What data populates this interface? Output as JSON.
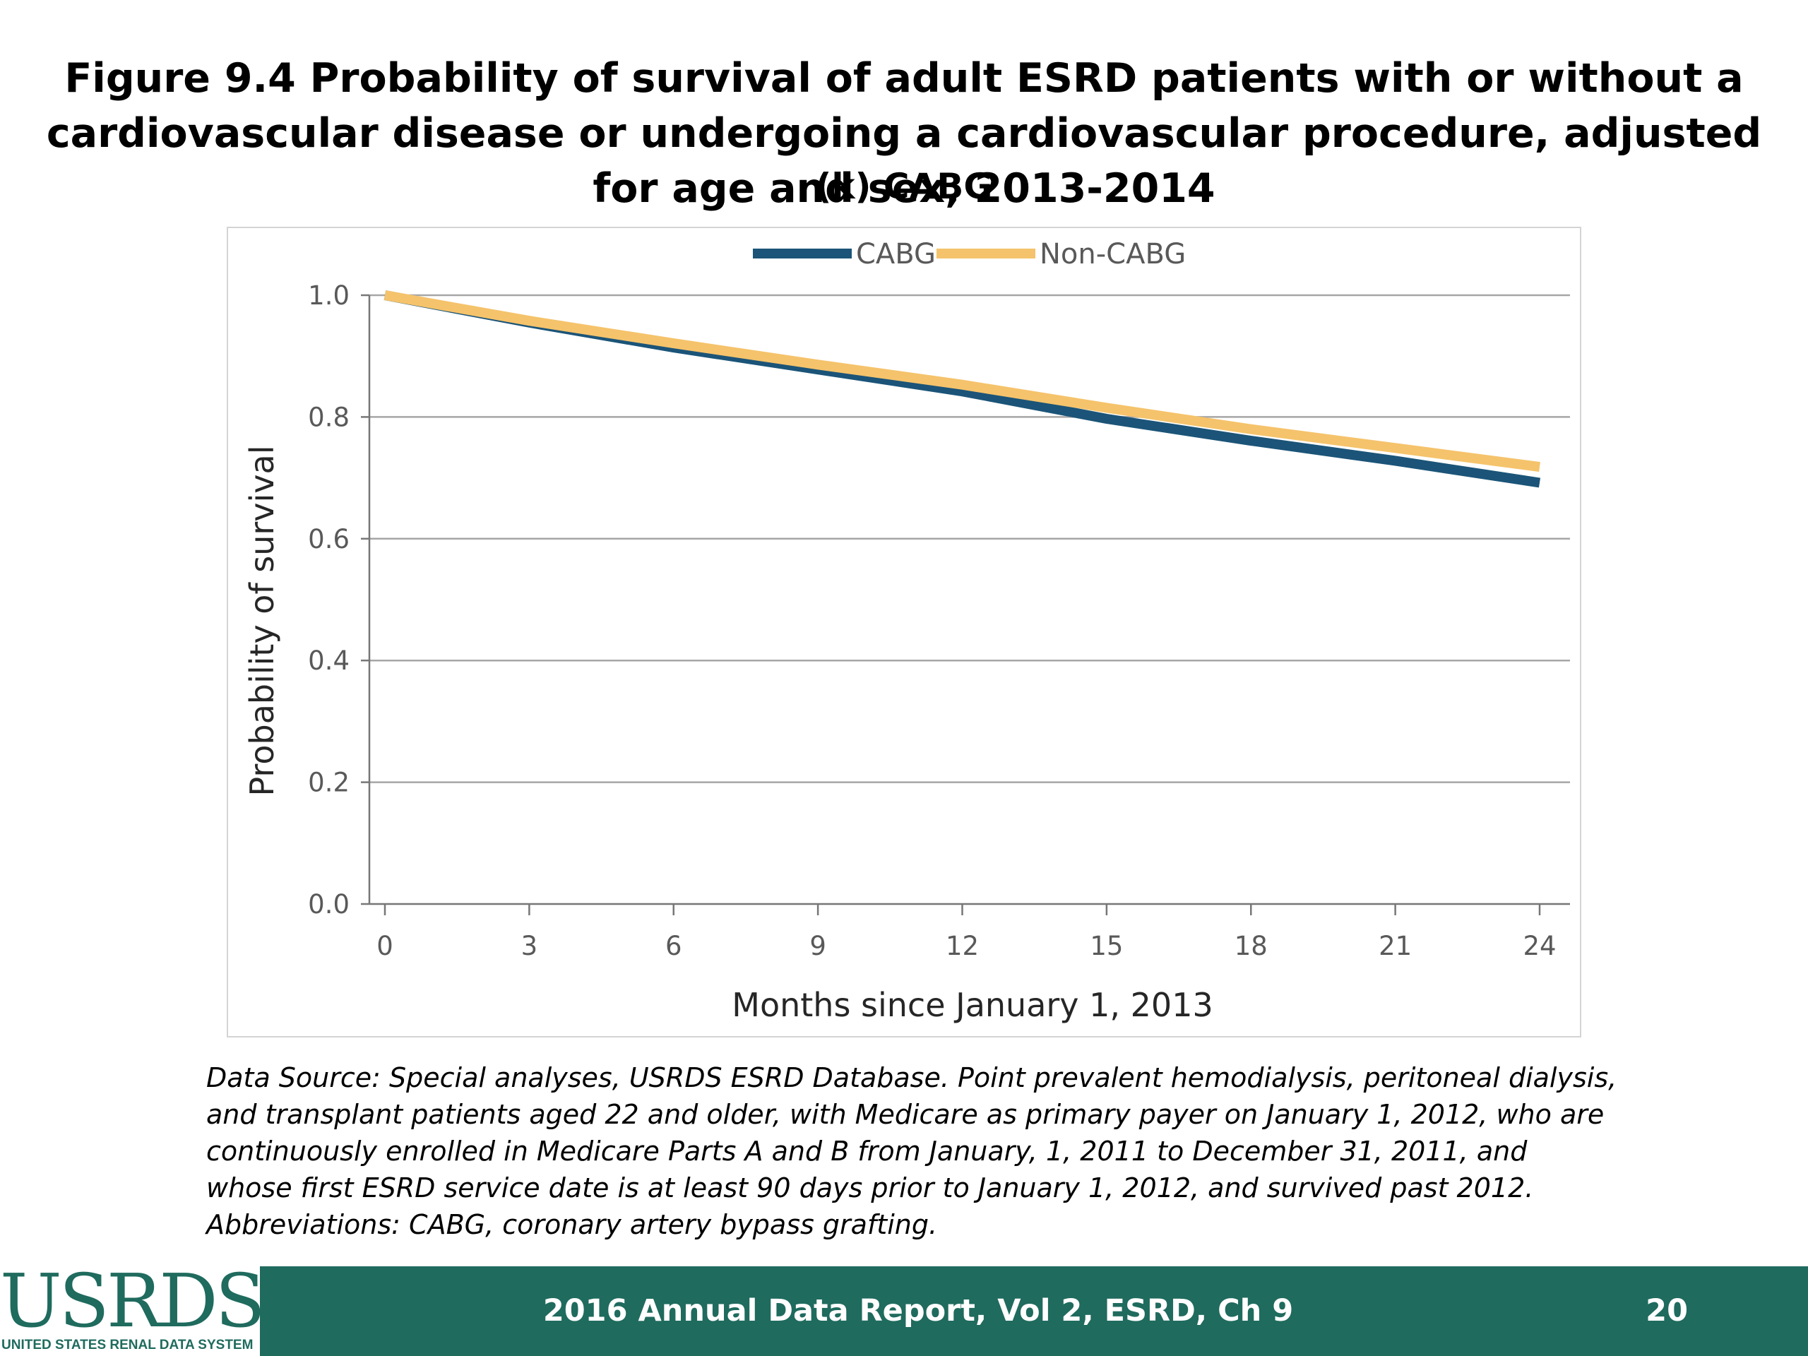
{
  "title": "Figure 9.4 Probability of survival of adult ESRD patients with or without a cardiovascular disease or undergoing a cardiovascular procedure, adjusted for age and sex, 2013-2014",
  "subtitle": "(k) CABG",
  "chart_data": {
    "type": "line",
    "x": [
      0,
      3,
      6,
      9,
      12,
      15,
      18,
      21,
      24
    ],
    "series": [
      {
        "name": "CABG",
        "color": "#1b5478",
        "values": [
          1.0,
          0.955,
          0.914,
          0.878,
          0.842,
          0.797,
          0.761,
          0.728,
          0.692
        ]
      },
      {
        "name": "Non-CABG",
        "color": "#f5c36b",
        "values": [
          1.0,
          0.958,
          0.921,
          0.886,
          0.853,
          0.815,
          0.78,
          0.749,
          0.718
        ]
      }
    ],
    "xlabel": "Months since January 1, 2013",
    "ylabel": "Probability of survival",
    "xticks": [
      "0",
      "3",
      "6",
      "9",
      "12",
      "15",
      "18",
      "21",
      "24"
    ],
    "yticks": [
      "0.0",
      "0.2",
      "0.4",
      "0.6",
      "0.8",
      "1.0"
    ],
    "xlim": [
      0,
      24
    ],
    "ylim": [
      0,
      1.0
    ],
    "grid": true,
    "legend_position": "top-center"
  },
  "footnote": "Data Source: Special analyses, USRDS ESRD Database. Point prevalent hemodialysis, peritoneal dialysis, and transplant patients aged 22 and older, with Medicare as primary payer on January 1, 2012, who are continuously enrolled in Medicare Parts A and B from January, 1, 2011 to December 31, 2011, and whose first ESRD service date is at least 90 days prior to January 1, 2012, and survived past 2012. Abbreviations: CABG, coronary artery bypass grafting.",
  "footer": {
    "text": "2016 Annual Data Report, Vol 2, ESRD, Ch 9",
    "page": "20",
    "logo": "USRDS",
    "logo_subtitle": "UNITED STATES RENAL DATA SYSTEM"
  }
}
